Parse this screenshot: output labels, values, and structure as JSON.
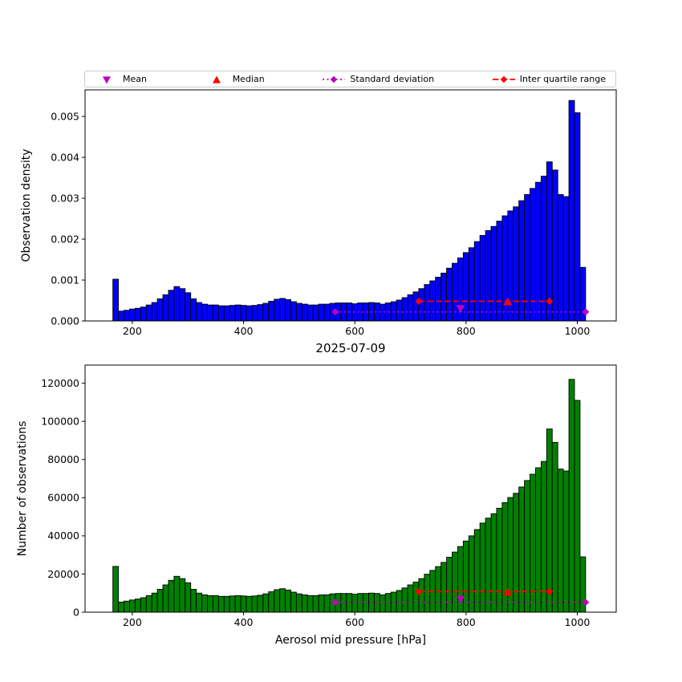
{
  "figure": {
    "title": "2025-07-09",
    "background": "#ffffff"
  },
  "legend": {
    "items": [
      {
        "label": "Mean",
        "marker": "triangle-down",
        "color": "#bf00bf"
      },
      {
        "label": "Median",
        "marker": "triangle-up",
        "color": "#ff0000"
      },
      {
        "label": "Standard deviation",
        "marker": "diamond-dotted-line",
        "color": "#bf00bf"
      },
      {
        "label": "Inter quartile range",
        "marker": "diamond-dashed-line",
        "color": "#ff0000"
      }
    ]
  },
  "chart_data": [
    {
      "type": "bar",
      "panel": "top",
      "ylabel": "Observation density",
      "xlabel": "",
      "bar_color": "#0000ff",
      "edge_color": "#000000",
      "bin_start": 165,
      "bin_width": 10,
      "xlim": [
        115,
        1070
      ],
      "ylim": [
        0,
        0.00565
      ],
      "xticks": [
        200,
        400,
        600,
        800,
        1000
      ],
      "xtick_labels": [
        "200",
        "400",
        "600",
        "800",
        "1000"
      ],
      "yticks": [
        0,
        0.001,
        0.002,
        0.003,
        0.004,
        0.005
      ],
      "ytick_labels": [
        "0.000",
        "0.001",
        "0.002",
        "0.003",
        "0.004",
        "0.005"
      ],
      "values": [
        0.00102,
        0.00024,
        0.00026,
        0.00029,
        0.00031,
        0.00034,
        0.00039,
        0.00045,
        0.00054,
        0.00064,
        0.00075,
        0.00084,
        0.00079,
        0.00069,
        0.00054,
        0.00045,
        0.00041,
        0.00039,
        0.00039,
        0.00037,
        0.00037,
        0.00038,
        0.00039,
        0.00038,
        0.00037,
        0.00038,
        0.0004,
        0.00043,
        0.00048,
        0.00053,
        0.00055,
        0.00052,
        0.00047,
        0.00043,
        0.00041,
        0.00039,
        0.00039,
        0.00041,
        0.00041,
        0.00043,
        0.00044,
        0.00044,
        0.00044,
        0.00042,
        0.00044,
        0.00044,
        0.00045,
        0.00044,
        0.00041,
        0.00044,
        0.00047,
        0.00051,
        0.00057,
        0.00064,
        0.00071,
        0.00079,
        0.00089,
        0.00098,
        0.00107,
        0.00117,
        0.00129,
        0.00141,
        0.00154,
        0.00167,
        0.00179,
        0.00194,
        0.00209,
        0.00221,
        0.00231,
        0.00244,
        0.00257,
        0.00269,
        0.00279,
        0.00294,
        0.00309,
        0.00324,
        0.00339,
        0.00354,
        0.00389,
        0.00369,
        0.00309,
        0.00304,
        0.00539,
        0.00509,
        0.00131
      ],
      "overlays": [
        {
          "id": "stddev-range",
          "label": "Standard deviation",
          "x1": 565,
          "x2": 1015,
          "y": 0.00022,
          "color": "#bf00bf",
          "line_style": "dotted",
          "marker": "diamond"
        },
        {
          "id": "iqr-range",
          "label": "Inter quartile range",
          "x1": 715,
          "x2": 950,
          "y": 0.00048,
          "color": "#ff0000",
          "line_style": "dashed",
          "marker": "diamond"
        },
        {
          "id": "mean",
          "label": "Mean",
          "x": 790,
          "y": 0.0003,
          "color": "#bf00bf",
          "marker": "triangle-down"
        },
        {
          "id": "median",
          "label": "Median",
          "x": 875,
          "y": 0.00047,
          "color": "#ff0000",
          "marker": "triangle-up"
        }
      ]
    },
    {
      "type": "bar",
      "panel": "bottom",
      "title": "2025-07-09",
      "ylabel": "Number of observations",
      "xlabel": "Aerosol mid pressure [hPa]",
      "bar_color": "#008000",
      "edge_color": "#000000",
      "bin_start": 165,
      "bin_width": 10,
      "xlim": [
        115,
        1070
      ],
      "ylim": [
        0,
        129500
      ],
      "xticks": [
        200,
        400,
        600,
        800,
        1000
      ],
      "xtick_labels": [
        "200",
        "400",
        "600",
        "800",
        "1000"
      ],
      "yticks": [
        0,
        20000,
        40000,
        60000,
        80000,
        100000,
        120000
      ],
      "ytick_labels": [
        "0",
        "20000",
        "40000",
        "60000",
        "80000",
        "100000",
        "120000"
      ],
      "values": [
        24000,
        5300,
        5800,
        6400,
        6900,
        7600,
        8700,
        10000,
        12000,
        14300,
        16700,
        18800,
        17600,
        15400,
        12000,
        10000,
        9100,
        8700,
        8700,
        8300,
        8300,
        8500,
        8700,
        8500,
        8300,
        8500,
        8900,
        9600,
        10700,
        11800,
        12300,
        11600,
        10500,
        9600,
        9100,
        8700,
        8700,
        9100,
        9100,
        9600,
        9800,
        9800,
        9800,
        9400,
        9800,
        9800,
        10000,
        9800,
        9100,
        9800,
        10500,
        11400,
        12700,
        14300,
        15800,
        17600,
        19900,
        21900,
        23900,
        26100,
        28800,
        31500,
        34400,
        37300,
        40000,
        43300,
        46700,
        49300,
        51600,
        54500,
        57400,
        60100,
        62300,
        65600,
        69000,
        72300,
        75700,
        79000,
        96000,
        89000,
        75000,
        74000,
        122000,
        111000,
        29000
      ],
      "overlays": [
        {
          "id": "stddev-range",
          "label": "Standard deviation",
          "x1": 565,
          "x2": 1015,
          "y": 5200,
          "color": "#bf00bf",
          "line_style": "dotted",
          "marker": "diamond"
        },
        {
          "id": "iqr-range",
          "label": "Inter quartile range",
          "x1": 715,
          "x2": 950,
          "y": 10800,
          "color": "#ff0000",
          "line_style": "dashed",
          "marker": "diamond"
        },
        {
          "id": "mean",
          "label": "Mean",
          "x": 790,
          "y": 6800,
          "color": "#bf00bf",
          "marker": "triangle-down"
        },
        {
          "id": "median",
          "label": "Median",
          "x": 875,
          "y": 10600,
          "color": "#ff0000",
          "marker": "triangle-up"
        }
      ]
    }
  ]
}
